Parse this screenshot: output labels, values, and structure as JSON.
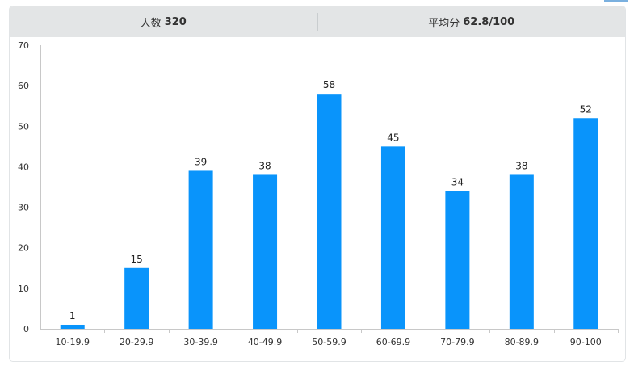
{
  "header": {
    "count_label": "人数",
    "count_value": "320",
    "avg_label": "平均分",
    "avg_value": "62.8/100"
  },
  "colors": {
    "bar": "#0994fb",
    "header_bg": "#e3e5e6",
    "axis": "#c8c8c8"
  },
  "chart_data": {
    "type": "bar",
    "categories": [
      "10-19.9",
      "20-29.9",
      "30-39.9",
      "40-49.9",
      "50-59.9",
      "60-69.9",
      "70-79.9",
      "80-89.9",
      "90-100"
    ],
    "values": [
      1,
      15,
      39,
      38,
      58,
      45,
      34,
      38,
      52
    ],
    "yticks": [
      0,
      10,
      20,
      30,
      40,
      50,
      60,
      70
    ],
    "ylim": [
      0,
      70
    ],
    "title": "",
    "xlabel": "",
    "ylabel": "",
    "grid": false,
    "data_labels": true
  }
}
